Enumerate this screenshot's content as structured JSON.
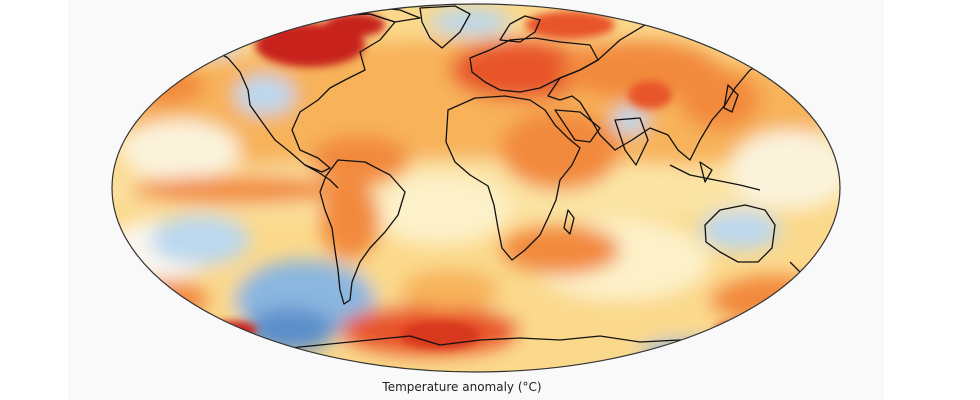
{
  "map": {
    "projection": "Robinson",
    "variable": "temperature-anomaly",
    "palette": {
      "strong_warm": "#c8211a",
      "warm": "#e8542a",
      "medium_warm": "#f28a3c",
      "light_warm": "#f7b25a",
      "pale_warm": "#fbd98c",
      "near_zero": "#fdf1c9",
      "white": "#fbfbf6",
      "light_cool": "#bcd8ee",
      "cool": "#8ab6df",
      "strong_cool": "#5b8fcb",
      "coastline": "#111111"
    }
  },
  "legend": {
    "caption": "Temperature anomaly (°C)"
  }
}
